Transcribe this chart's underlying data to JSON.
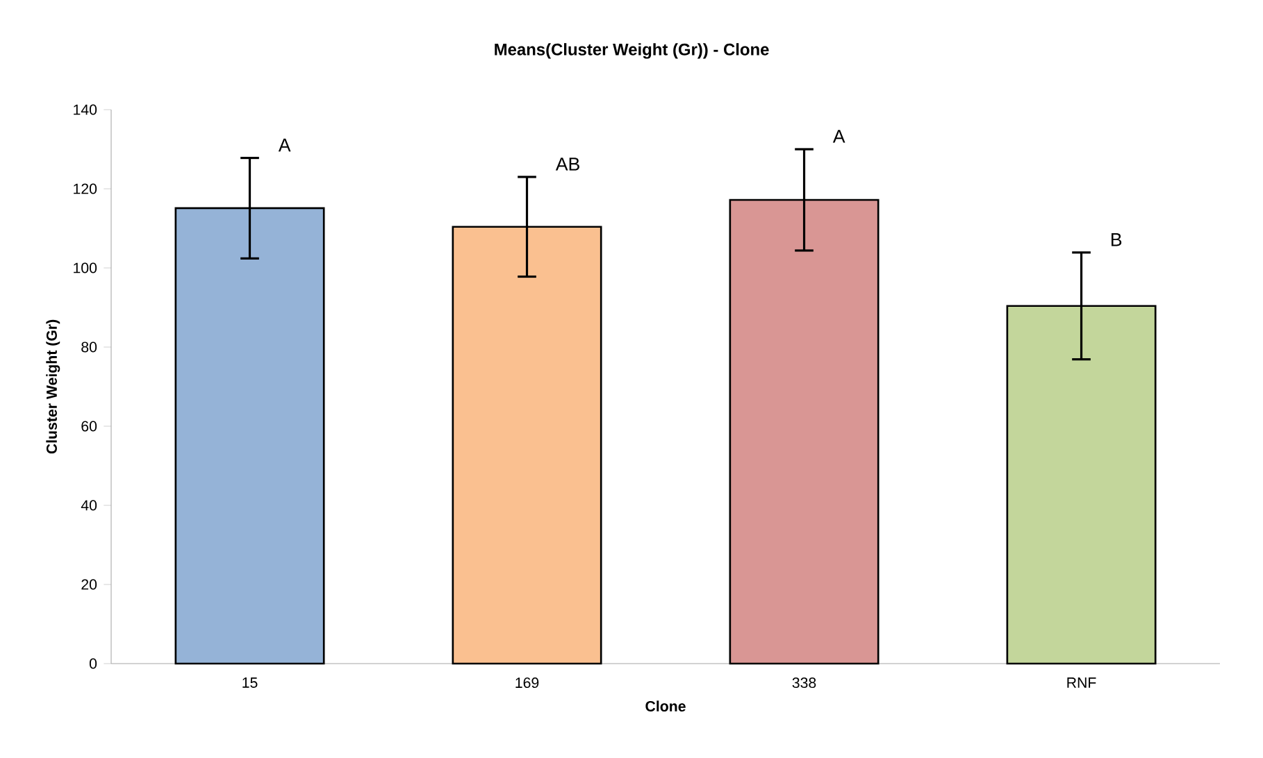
{
  "chart_data": {
    "type": "bar",
    "title": "Means(Cluster Weight (Gr)) - Clone",
    "xlabel": "Clone",
    "ylabel": "Cluster Weight (Gr)",
    "categories": [
      "15",
      "169",
      "338",
      "RNF"
    ],
    "values": [
      115.1,
      110.4,
      117.2,
      90.4
    ],
    "errors": [
      12.7,
      12.6,
      12.8,
      13.5
    ],
    "colors": [
      "#95b3d7",
      "#fac090",
      "#d99694",
      "#c3d69b"
    ],
    "ylim": [
      0,
      140
    ],
    "yticks": [
      0,
      20,
      40,
      60,
      80,
      100,
      120,
      140
    ],
    "annotations": [
      "A",
      "AB",
      "A",
      "B"
    ]
  }
}
